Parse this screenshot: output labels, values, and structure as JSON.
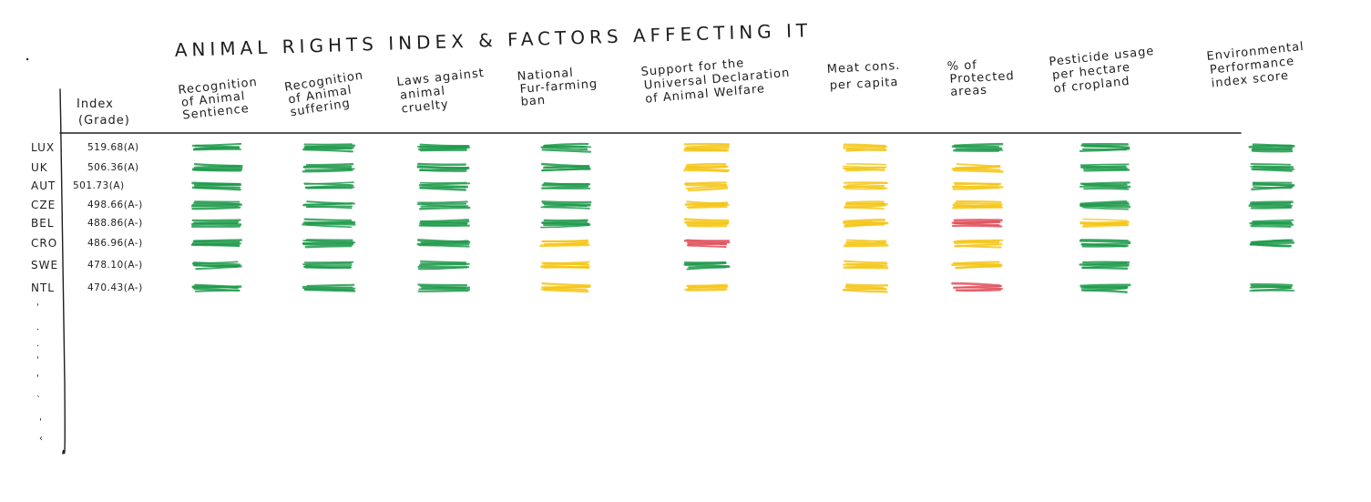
{
  "title": "ANIMAL RIGHTS INDEX & FACTORS AFFECTING IT",
  "index_header": [
    "Index",
    "(Grade)"
  ],
  "columns": [
    {
      "key": "sentience",
      "lines": [
        "Recognition",
        "of Animal",
        "Sentience"
      ]
    },
    {
      "key": "suffering",
      "lines": [
        "Recognition",
        "of Animal",
        "suffering"
      ]
    },
    {
      "key": "cruelty",
      "lines": [
        "Laws against",
        "animal",
        "cruelty"
      ]
    },
    {
      "key": "fur",
      "lines": [
        "National",
        "Fur-farming",
        "ban"
      ]
    },
    {
      "key": "udaw",
      "lines": [
        "Support for the",
        "Universal Declaration",
        "of Animal Welfare"
      ]
    },
    {
      "key": "meat",
      "lines": [
        "Meat cons.",
        "per capita"
      ]
    },
    {
      "key": "protected",
      "lines": [
        "% of",
        "Protected",
        "areas"
      ]
    },
    {
      "key": "pesticide",
      "lines": [
        "Pesticide usage",
        "per hectare",
        "of cropland"
      ]
    },
    {
      "key": "epi",
      "lines": [
        "Environmental",
        "Performance",
        "index score"
      ]
    }
  ],
  "colors": {
    "green": "#1f9a4b",
    "yellow": "#f5c518",
    "red": "#e0505c",
    "ink": "#1e1e1e"
  },
  "rows": [
    {
      "country": "LUX",
      "index": "519.68(A)",
      "marks": [
        "green",
        "green",
        "green",
        "green",
        "yellow",
        "yellow",
        "green",
        "green",
        "green"
      ]
    },
    {
      "country": "UK",
      "index": "506.36(A)",
      "marks": [
        "green",
        "green",
        "green",
        "green",
        "yellow",
        "yellow",
        "yellow",
        "green",
        "green"
      ]
    },
    {
      "country": "AUT",
      "index": "501.73(A)",
      "marks": [
        "green",
        "green",
        "green",
        "green",
        "yellow",
        "yellow",
        "yellow",
        "green",
        "green"
      ]
    },
    {
      "country": "CZE",
      "index": "498.66(A-)",
      "marks": [
        "green",
        "green",
        "green",
        "green",
        "yellow",
        "yellow",
        "yellow",
        "green",
        "green"
      ]
    },
    {
      "country": "BEL",
      "index": "488.86(A-)",
      "marks": [
        "green",
        "green",
        "green",
        "green",
        "yellow",
        "yellow",
        "red",
        "yellow",
        "green"
      ]
    },
    {
      "country": "CRO",
      "index": "486.96(A-)",
      "marks": [
        "green",
        "green",
        "green",
        "yellow",
        "red",
        "yellow",
        "yellow",
        "green",
        "green"
      ]
    },
    {
      "country": "SWE",
      "index": "478.10(A-)",
      "marks": [
        "green",
        "green",
        "green",
        "yellow",
        "green",
        "yellow",
        "yellow",
        "green",
        ""
      ]
    },
    {
      "country": "NTL",
      "index": "470.43(A-)",
      "marks": [
        "green",
        "green",
        "green",
        "yellow",
        "yellow",
        "yellow",
        "red",
        "green",
        "green"
      ]
    }
  ]
}
